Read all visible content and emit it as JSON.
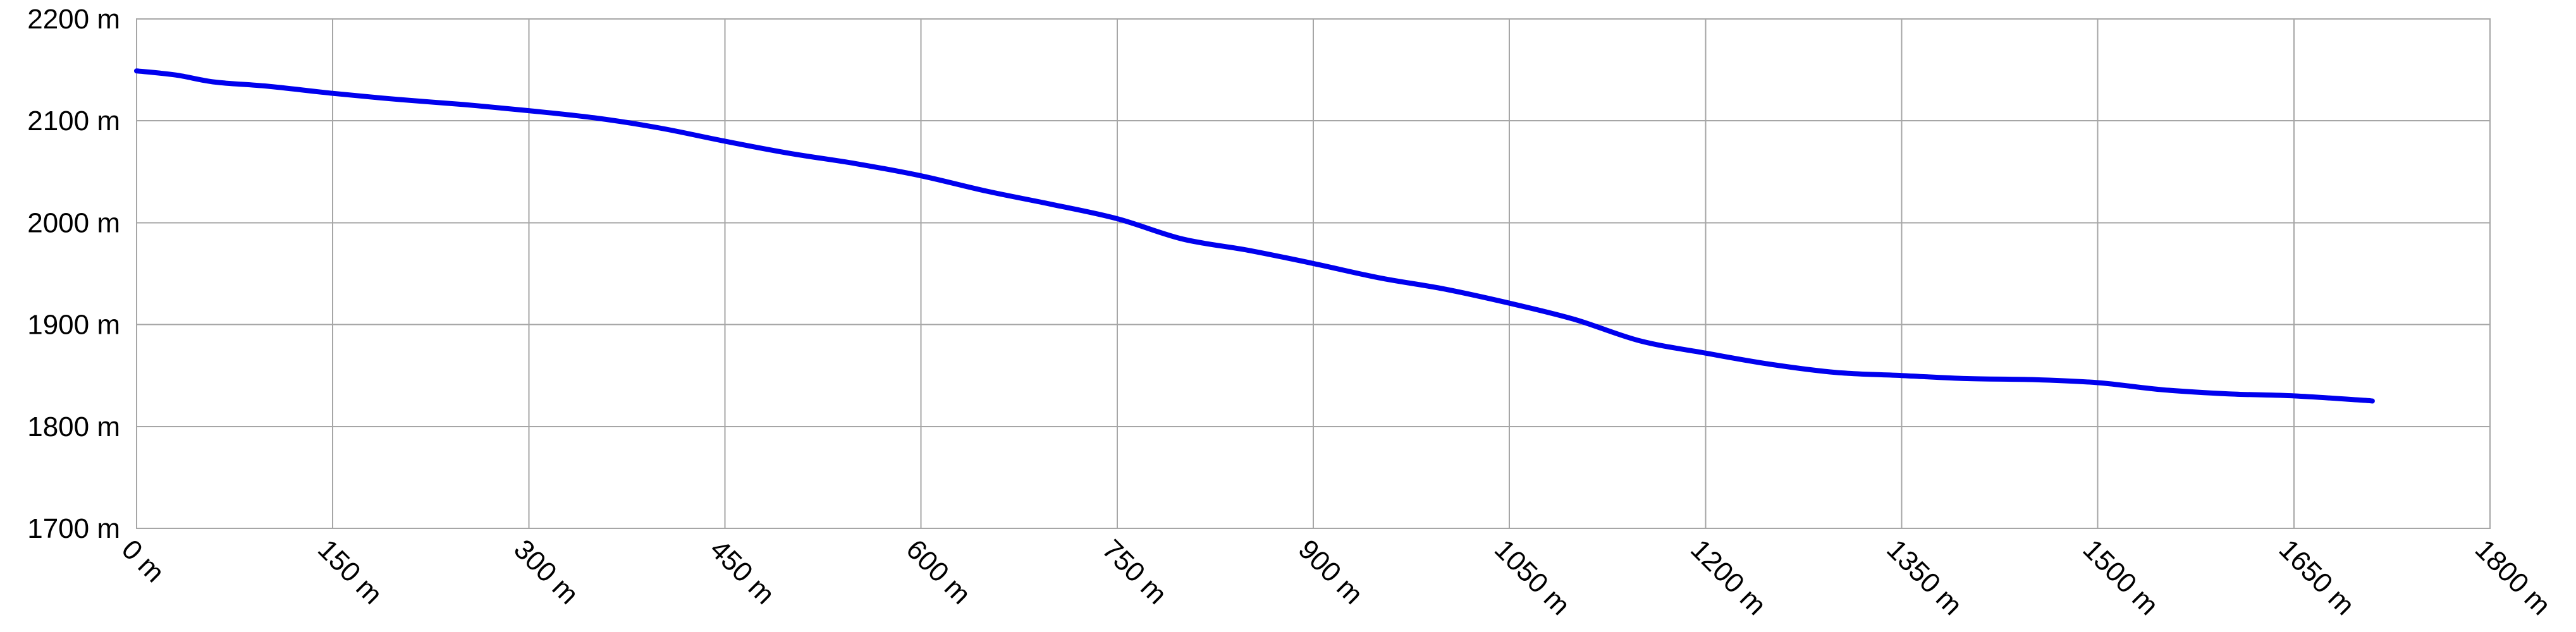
{
  "chart_data": {
    "type": "line",
    "title": "",
    "xlabel": "",
    "ylabel": "",
    "xlim": [
      0,
      1800
    ],
    "ylim": [
      1700,
      2200
    ],
    "grid": true,
    "legend": "none",
    "x_ticks": [
      0,
      150,
      300,
      450,
      600,
      750,
      900,
      1050,
      1200,
      1350,
      1500,
      1650,
      1800
    ],
    "x_tick_labels": [
      "0 m",
      "150 m",
      "300 m",
      "450 m",
      "600 m",
      "750 m",
      "900 m",
      "1050 m",
      "1200 m",
      "1350 m",
      "1500 m",
      "1650 m",
      "1800 m"
    ],
    "y_ticks": [
      1700,
      1800,
      1900,
      2000,
      2100,
      2200
    ],
    "y_tick_labels": [
      "1700 m",
      "1800 m",
      "1900 m",
      "2000 m",
      "2100 m",
      "2200 m"
    ],
    "series": [
      {
        "color": "#0000ee",
        "x": [
          0,
          30,
          60,
          100,
          150,
          200,
          250,
          300,
          350,
          400,
          450,
          500,
          550,
          600,
          650,
          700,
          750,
          800,
          850,
          900,
          950,
          1000,
          1050,
          1100,
          1150,
          1200,
          1250,
          1300,
          1350,
          1400,
          1450,
          1500,
          1550,
          1600,
          1650,
          1700,
          1710
        ],
        "y": [
          2149,
          2145,
          2138,
          2134,
          2127,
          2121,
          2116,
          2110,
          2103,
          2093,
          2080,
          2068,
          2058,
          2046,
          2031,
          2018,
          2004,
          1984,
          1973,
          1960,
          1946,
          1935,
          1921,
          1905,
          1884,
          1872,
          1861,
          1853,
          1850,
          1847,
          1846,
          1843,
          1836,
          1832,
          1830,
          1826,
          1825
        ]
      }
    ]
  }
}
